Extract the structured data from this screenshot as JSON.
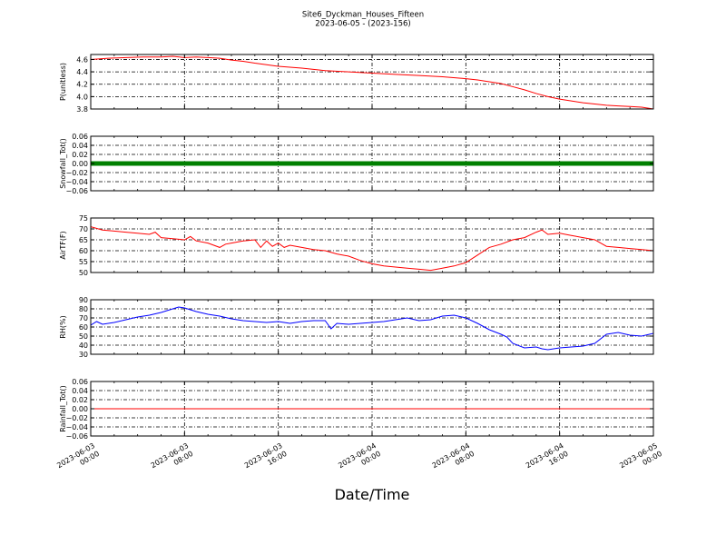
{
  "figure": {
    "title": "Site6_Dyckman_Houses_Fifteen",
    "subtitle": "2023-06-05 - (2023-156)",
    "xlabel": "Date/Time"
  },
  "chart_data": {
    "type": "line",
    "x_range": [
      "2023-06-03 00:00",
      "2023-06-05 00:00"
    ],
    "x_ticks": [
      {
        "line1": "2023-06-03",
        "line2": "00:00",
        "hours": 0
      },
      {
        "line1": "2023-06-03",
        "line2": "08:00",
        "hours": 8
      },
      {
        "line1": "2023-06-03",
        "line2": "16:00",
        "hours": 16
      },
      {
        "line1": "2023-06-04",
        "line2": "00:00",
        "hours": 24
      },
      {
        "line1": "2023-06-04",
        "line2": "08:00",
        "hours": 32
      },
      {
        "line1": "2023-06-04",
        "line2": "16:00",
        "hours": 40
      },
      {
        "line1": "2023-06-05",
        "line2": "00:00",
        "hours": 48
      }
    ],
    "grid": true,
    "panels": [
      {
        "ylabel": "P(unitless)",
        "ylim": [
          3.8,
          4.68
        ],
        "yticks": [
          "4.6",
          "4.4",
          "4.2",
          "4.0",
          "3.8"
        ],
        "ytick_values": [
          4.6,
          4.4,
          4.2,
          4.0,
          3.8
        ],
        "color": "#ff0000",
        "style": "line",
        "hours": [
          0,
          1.5,
          3,
          4.5,
          6,
          7,
          8,
          9,
          10,
          11,
          12,
          13,
          14,
          16,
          18,
          20,
          22,
          24,
          26,
          28,
          30,
          32,
          33,
          34,
          35,
          36,
          37,
          38,
          39,
          40,
          41,
          42,
          43,
          44,
          45,
          46,
          47,
          48
        ],
        "values": [
          4.6,
          4.62,
          4.63,
          4.64,
          4.64,
          4.65,
          4.63,
          4.64,
          4.63,
          4.62,
          4.59,
          4.57,
          4.54,
          4.49,
          4.46,
          4.42,
          4.4,
          4.38,
          4.36,
          4.34,
          4.32,
          4.29,
          4.27,
          4.24,
          4.21,
          4.16,
          4.11,
          4.05,
          4.0,
          3.96,
          3.93,
          3.9,
          3.88,
          3.86,
          3.85,
          3.84,
          3.83,
          3.8
        ]
      },
      {
        "ylabel": "Snowfall_Tot()",
        "ylim": [
          -0.06,
          0.06
        ],
        "yticks": [
          "0.06",
          "0.04",
          "0.02",
          "0.00",
          "−0.02",
          "−0.04",
          "−0.06"
        ],
        "ytick_values": [
          0.06,
          0.04,
          0.02,
          0.0,
          -0.02,
          -0.04,
          -0.06
        ],
        "color": "#008000",
        "style": "markers",
        "hours": [
          0,
          48
        ],
        "values": [
          0.0,
          0.0
        ]
      },
      {
        "ylabel": "AirTF(F)",
        "ylim": [
          50,
          75
        ],
        "yticks": [
          "75",
          "70",
          "65",
          "60",
          "55",
          "50"
        ],
        "ytick_values": [
          75,
          70,
          65,
          60,
          55,
          50
        ],
        "color": "#ff0000",
        "style": "line",
        "hours": [
          0,
          1,
          2,
          3,
          4,
          5,
          5.5,
          6,
          7,
          8,
          8.5,
          9,
          10,
          11,
          11.5,
          12,
          13,
          14,
          14.5,
          15,
          15.5,
          16,
          16.5,
          17,
          18,
          19,
          20,
          21,
          22,
          23,
          24,
          25,
          26,
          27,
          28,
          29,
          30,
          31,
          32,
          33,
          34,
          35,
          36,
          37,
          38,
          38.5,
          39,
          40,
          41,
          42,
          43,
          44,
          45,
          46,
          47,
          48
        ],
        "values": [
          71,
          69.5,
          69,
          68.5,
          68,
          67.5,
          68.5,
          66,
          65.5,
          65,
          66.5,
          64.5,
          63.5,
          61.5,
          63,
          63.5,
          64.5,
          65,
          61.5,
          64.5,
          62,
          63.5,
          61.5,
          62.5,
          61.5,
          60.5,
          60,
          58.5,
          57.5,
          55.5,
          54,
          53,
          52.5,
          52,
          51.5,
          51,
          52,
          53,
          54.5,
          58,
          61.5,
          63,
          65,
          66,
          68.5,
          69.5,
          67.5,
          68,
          67,
          66,
          65,
          62,
          61.5,
          61,
          60.5,
          60
        ]
      },
      {
        "ylabel": "RH(%)",
        "ylim": [
          30,
          90
        ],
        "yticks": [
          "90",
          "80",
          "70",
          "60",
          "50",
          "40",
          "30"
        ],
        "ytick_values": [
          90,
          80,
          70,
          60,
          50,
          40,
          30
        ],
        "color": "#0000ff",
        "style": "line",
        "hours": [
          0,
          0.5,
          1,
          2,
          3,
          4,
          5,
          6,
          7,
          7.5,
          8,
          9,
          10,
          11,
          12,
          13,
          14,
          15,
          16,
          17,
          18,
          19,
          20,
          20.5,
          21,
          22,
          23,
          24,
          25,
          26,
          27,
          28,
          29,
          30,
          31,
          32,
          33,
          34,
          35,
          35.5,
          36,
          37,
          38,
          38.5,
          39,
          40,
          41,
          42,
          43,
          44,
          45,
          46,
          47,
          48
        ],
        "values": [
          62,
          66,
          63,
          65,
          68,
          71,
          73,
          76,
          80,
          82,
          81,
          77,
          74,
          72,
          69,
          67,
          66,
          65,
          66,
          64,
          66,
          67,
          67,
          58,
          64,
          63,
          64,
          65,
          66,
          68,
          70,
          67,
          68,
          72,
          73,
          70,
          64,
          57,
          52,
          49,
          42,
          37,
          38,
          36,
          35,
          37,
          38,
          39,
          42,
          52,
          54,
          51,
          50,
          53
        ]
      },
      {
        "ylabel": "Rainfall_Tot()",
        "ylim": [
          -0.06,
          0.06
        ],
        "yticks": [
          "0.06",
          "0.04",
          "0.02",
          "0.00",
          "−0.02",
          "−0.04",
          "−0.06"
        ],
        "ytick_values": [
          0.06,
          0.04,
          0.02,
          0.0,
          -0.02,
          -0.04,
          -0.06
        ],
        "color": "#ff0000",
        "style": "line",
        "hours": [
          0,
          48
        ],
        "values": [
          0.0,
          0.0
        ]
      }
    ]
  }
}
